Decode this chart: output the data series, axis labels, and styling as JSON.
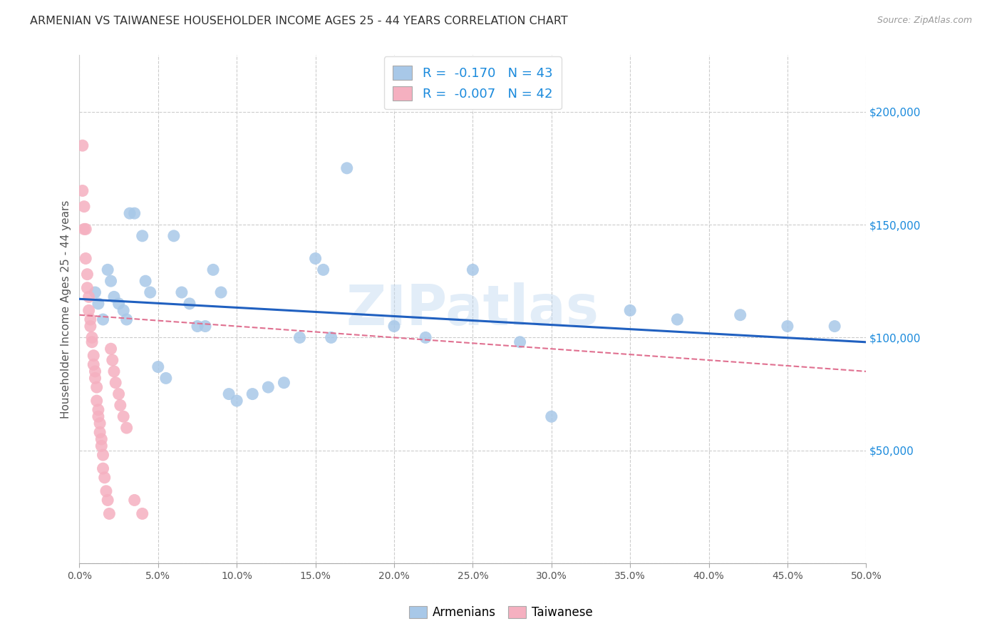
{
  "title": "ARMENIAN VS TAIWANESE HOUSEHOLDER INCOME AGES 25 - 44 YEARS CORRELATION CHART",
  "source": "Source: ZipAtlas.com",
  "ylabel": "Householder Income Ages 25 - 44 years",
  "xlim": [
    0.0,
    0.5
  ],
  "ylim": [
    0,
    225000
  ],
  "xticks": [
    0.0,
    0.05,
    0.1,
    0.15,
    0.2,
    0.25,
    0.3,
    0.35,
    0.4,
    0.45,
    0.5
  ],
  "ytick_positions": [
    0,
    50000,
    100000,
    150000,
    200000
  ],
  "ytick_labels_right": [
    "",
    "$50,000",
    "$100,000",
    "$150,000",
    "$200,000"
  ],
  "background_color": "#ffffff",
  "grid_color": "#cccccc",
  "armenian_color": "#a8c8e8",
  "taiwanese_color": "#f5b0c0",
  "armenian_R": -0.17,
  "armenian_N": 43,
  "taiwanese_R": -0.007,
  "taiwanese_N": 42,
  "armenian_line_color": "#2060c0",
  "taiwanese_line_color": "#e07090",
  "watermark": "ZIPatlas",
  "legend_R_color": "#1a8adc",
  "armenians_x": [
    0.01,
    0.012,
    0.015,
    0.018,
    0.02,
    0.022,
    0.025,
    0.028,
    0.03,
    0.032,
    0.035,
    0.04,
    0.042,
    0.045,
    0.05,
    0.055,
    0.06,
    0.065,
    0.07,
    0.075,
    0.08,
    0.085,
    0.09,
    0.095,
    0.1,
    0.11,
    0.12,
    0.13,
    0.14,
    0.15,
    0.155,
    0.16,
    0.17,
    0.2,
    0.22,
    0.25,
    0.28,
    0.3,
    0.35,
    0.38,
    0.42,
    0.45,
    0.48
  ],
  "armenians_y": [
    120000,
    115000,
    108000,
    130000,
    125000,
    118000,
    115000,
    112000,
    108000,
    155000,
    155000,
    145000,
    125000,
    120000,
    87000,
    82000,
    145000,
    120000,
    115000,
    105000,
    105000,
    130000,
    120000,
    75000,
    72000,
    75000,
    78000,
    80000,
    100000,
    135000,
    130000,
    100000,
    175000,
    105000,
    100000,
    130000,
    98000,
    65000,
    112000,
    108000,
    110000,
    105000,
    105000
  ],
  "taiwanese_x": [
    0.002,
    0.002,
    0.003,
    0.003,
    0.004,
    0.004,
    0.005,
    0.005,
    0.006,
    0.006,
    0.007,
    0.007,
    0.008,
    0.008,
    0.009,
    0.009,
    0.01,
    0.01,
    0.011,
    0.011,
    0.012,
    0.012,
    0.013,
    0.013,
    0.014,
    0.014,
    0.015,
    0.015,
    0.016,
    0.017,
    0.018,
    0.019,
    0.02,
    0.021,
    0.022,
    0.023,
    0.025,
    0.026,
    0.028,
    0.03,
    0.035,
    0.04
  ],
  "taiwanese_y": [
    185000,
    165000,
    158000,
    148000,
    148000,
    135000,
    128000,
    122000,
    118000,
    112000,
    108000,
    105000,
    100000,
    98000,
    92000,
    88000,
    85000,
    82000,
    78000,
    72000,
    68000,
    65000,
    62000,
    58000,
    55000,
    52000,
    48000,
    42000,
    38000,
    32000,
    28000,
    22000,
    95000,
    90000,
    85000,
    80000,
    75000,
    70000,
    65000,
    60000,
    28000,
    22000
  ]
}
